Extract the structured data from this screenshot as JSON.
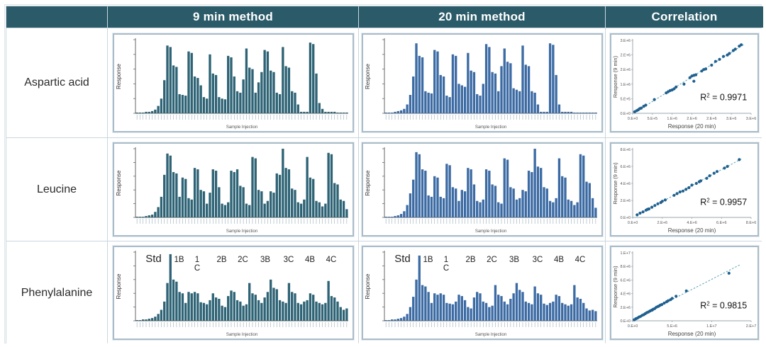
{
  "table": {
    "corner_label": "",
    "column_headers": [
      "9 min method",
      "20 min method",
      "Correlation"
    ],
    "row_labels": [
      "Aspartic acid",
      "Leucine",
      "Phenylalanine"
    ]
  },
  "colors": {
    "header_bg": "#2b5b69",
    "header_text": "#ffffff",
    "bar_9min": "#2e6375",
    "bar_20min": "#3c6ba4",
    "scatter_point": "#1f608f",
    "trendline": "#57a0b4",
    "axis": "#666666",
    "tick_text": "#555555",
    "panel_border": "#a9bcc9",
    "cell_border": "#c9d6dd"
  },
  "chart_data": [
    {
      "type": "bar",
      "row": "Aspartic acid",
      "method": "9 min method",
      "ylabel": "Response",
      "xlabel": "Sample Injection",
      "color_key": "bar_9min",
      "values": [
        1,
        1,
        1,
        2,
        2,
        3,
        5,
        10,
        20,
        45,
        92,
        90,
        65,
        63,
        26,
        25,
        24,
        84,
        82,
        50,
        48,
        38,
        22,
        20,
        80,
        54,
        52,
        22,
        20,
        19,
        78,
        76,
        50,
        30,
        28,
        46,
        88,
        62,
        60,
        28,
        42,
        56,
        86,
        84,
        58,
        56,
        28,
        26,
        90,
        64,
        62,
        30,
        28,
        12,
        2,
        2,
        2,
        96,
        94,
        54,
        14,
        6,
        2,
        2,
        2,
        2,
        1,
        1,
        1,
        1
      ]
    },
    {
      "type": "bar",
      "row": "Aspartic acid",
      "method": "20 min method",
      "ylabel": "Response",
      "xlabel": "Sample Injection",
      "color_key": "bar_20min",
      "values": [
        1,
        1,
        1,
        2,
        3,
        4,
        6,
        12,
        25,
        50,
        95,
        78,
        76,
        30,
        28,
        27,
        86,
        84,
        52,
        50,
        24,
        22,
        80,
        78,
        40,
        38,
        36,
        82,
        58,
        56,
        26,
        24,
        40,
        94,
        90,
        56,
        54,
        30,
        64,
        88,
        70,
        68,
        34,
        32,
        30,
        92,
        66,
        64,
        30,
        28,
        12,
        2,
        2,
        2,
        95,
        93,
        52,
        12,
        2,
        2,
        2,
        2,
        1,
        1,
        1,
        1,
        1,
        1,
        1,
        1
      ]
    },
    {
      "type": "scatter",
      "row": "Aspartic acid",
      "xlabel": "Response (20 min)",
      "ylabel": "Response (9 min)",
      "r2_prefix": "R",
      "r2_sup": "2",
      "r2_eq": " = 0.9971",
      "r2": 0.9971,
      "xlim": [
        0,
        3.0
      ],
      "ylim": [
        0,
        2.5
      ],
      "x_ticks": {
        "values": [
          0,
          0.5,
          1,
          1.5,
          2,
          2.5,
          3
        ],
        "labels": [
          "0.E+0",
          "5.E+5",
          "1.E+6",
          "2.E+6",
          "2.E+6",
          "3.E+6",
          "3.E+6"
        ]
      },
      "y_ticks": {
        "values": [
          0,
          0.5,
          1,
          1.5,
          2,
          2.5
        ],
        "labels": [
          "0.E+0",
          "5.E+5",
          "1.E+6",
          "2.E+6",
          "2.E+6",
          "3.E+6"
        ]
      },
      "points": [
        [
          0.05,
          0.05
        ],
        [
          0.1,
          0.09
        ],
        [
          0.14,
          0.12
        ],
        [
          0.18,
          0.16
        ],
        [
          0.22,
          0.18
        ],
        [
          0.28,
          0.24
        ],
        [
          0.33,
          0.28
        ],
        [
          0.55,
          0.47
        ],
        [
          0.85,
          0.7
        ],
        [
          0.9,
          0.74
        ],
        [
          0.95,
          0.78
        ],
        [
          1.0,
          0.8
        ],
        [
          1.05,
          0.84
        ],
        [
          1.1,
          0.9
        ],
        [
          1.3,
          1.0
        ],
        [
          1.45,
          1.22
        ],
        [
          1.5,
          1.28
        ],
        [
          1.55,
          1.1
        ],
        [
          1.55,
          1.3
        ],
        [
          1.6,
          1.32
        ],
        [
          1.75,
          1.45
        ],
        [
          1.8,
          1.5
        ],
        [
          1.85,
          1.52
        ],
        [
          2.0,
          1.65
        ],
        [
          2.1,
          1.78
        ],
        [
          2.2,
          1.85
        ],
        [
          2.3,
          1.95
        ],
        [
          2.4,
          2.0
        ],
        [
          2.45,
          2.05
        ],
        [
          2.55,
          2.15
        ],
        [
          2.6,
          2.2
        ],
        [
          2.7,
          2.3
        ],
        [
          2.75,
          2.35
        ]
      ]
    },
    {
      "type": "bar",
      "row": "Leucine",
      "method": "9 min method",
      "ylabel": "Response",
      "xlabel": "Sample Injection",
      "color_key": "bar_9min",
      "values": [
        1,
        1,
        1,
        2,
        3,
        4,
        8,
        15,
        30,
        62,
        93,
        90,
        66,
        64,
        30,
        58,
        56,
        28,
        26,
        72,
        70,
        40,
        38,
        20,
        36,
        70,
        68,
        44,
        20,
        18,
        22,
        68,
        66,
        70,
        46,
        44,
        20,
        18,
        88,
        86,
        40,
        38,
        20,
        24,
        38,
        36,
        64,
        62,
        100,
        72,
        70,
        42,
        40,
        22,
        20,
        26,
        88,
        58,
        56,
        24,
        22,
        16,
        20,
        94,
        92,
        50,
        48,
        26,
        24,
        12
      ]
    },
    {
      "type": "bar",
      "row": "Leucine",
      "method": "20 min method",
      "ylabel": "Response",
      "xlabel": "Sample Injection",
      "color_key": "bar_20min",
      "values": [
        1,
        1,
        1,
        2,
        3,
        5,
        9,
        18,
        35,
        55,
        95,
        92,
        70,
        68,
        32,
        30,
        60,
        58,
        30,
        28,
        78,
        76,
        44,
        42,
        24,
        40,
        38,
        72,
        70,
        48,
        24,
        22,
        26,
        70,
        68,
        48,
        46,
        22,
        20,
        86,
        84,
        44,
        42,
        26,
        28,
        40,
        38,
        68,
        66,
        100,
        74,
        72,
        44,
        42,
        24,
        22,
        28,
        86,
        60,
        58,
        26,
        24,
        18,
        22,
        92,
        90,
        52,
        50,
        28,
        14
      ]
    },
    {
      "type": "scatter",
      "row": "Leucine",
      "xlabel": "Response (20 min)",
      "ylabel": "Response (9 min)",
      "r2_prefix": "R",
      "r2_sup": "2",
      "r2_eq": " = 0.9957",
      "r2": 0.9957,
      "xlim": [
        0,
        8
      ],
      "ylim": [
        0,
        8
      ],
      "x_ticks": {
        "values": [
          0,
          2,
          4,
          6,
          8
        ],
        "labels": [
          "0.E+0",
          "2.E+6",
          "4.E+6",
          "6.E+6",
          "8.E+6"
        ]
      },
      "y_ticks": {
        "values": [
          0,
          2,
          4,
          6,
          8
        ],
        "labels": [
          "0.E+0",
          "2.E+6",
          "4.E+6",
          "6.E+6",
          "8.E+6"
        ]
      },
      "points": [
        [
          0.3,
          0.3
        ],
        [
          0.5,
          0.5
        ],
        [
          0.7,
          0.65
        ],
        [
          0.9,
          0.85
        ],
        [
          1.0,
          0.95
        ],
        [
          1.1,
          1.0
        ],
        [
          1.3,
          1.2
        ],
        [
          1.5,
          1.4
        ],
        [
          1.7,
          1.6
        ],
        [
          1.9,
          1.75
        ],
        [
          2.0,
          1.9
        ],
        [
          2.2,
          2.05
        ],
        [
          2.8,
          2.6
        ],
        [
          3.0,
          2.8
        ],
        [
          3.2,
          3.0
        ],
        [
          3.4,
          3.1
        ],
        [
          3.6,
          3.3
        ],
        [
          3.8,
          3.5
        ],
        [
          4.0,
          3.8
        ],
        [
          4.3,
          4.0
        ],
        [
          4.5,
          4.2
        ],
        [
          4.6,
          4.3
        ],
        [
          5.0,
          4.6
        ],
        [
          5.2,
          4.9
        ],
        [
          5.5,
          5.2
        ],
        [
          5.7,
          5.4
        ],
        [
          6.2,
          5.8
        ],
        [
          6.4,
          6.0
        ],
        [
          7.2,
          6.8
        ]
      ]
    },
    {
      "type": "bar",
      "row": "Phenylalanine",
      "method": "9 min method",
      "ylabel": "Response",
      "xlabel": "Sample Injection",
      "color_key": "bar_9min",
      "annotations": [
        {
          "label": "Std",
          "fx": 0.085,
          "size": 15
        },
        {
          "label": "1B",
          "fx": 0.205,
          "size": 11.5
        },
        {
          "label": "1",
          "label2": "C",
          "fx": 0.29,
          "size": 11.5
        },
        {
          "label": "2B",
          "fx": 0.405,
          "size": 11.5
        },
        {
          "label": "2C",
          "fx": 0.505,
          "size": 11.5
        },
        {
          "label": "3B",
          "fx": 0.61,
          "size": 11.5
        },
        {
          "label": "3C",
          "fx": 0.72,
          "size": 11.5
        },
        {
          "label": "4B",
          "fx": 0.82,
          "size": 11.5
        },
        {
          "label": "4C",
          "fx": 0.92,
          "size": 11.5
        }
      ],
      "values": [
        1,
        1,
        2,
        2,
        3,
        4,
        6,
        10,
        16,
        28,
        55,
        97,
        60,
        57,
        42,
        40,
        26,
        42,
        40,
        42,
        40,
        27,
        26,
        24,
        30,
        40,
        34,
        32,
        22,
        20,
        36,
        44,
        42,
        30,
        28,
        22,
        24,
        55,
        40,
        38,
        30,
        26,
        34,
        42,
        60,
        48,
        46,
        30,
        28,
        26,
        55,
        42,
        40,
        26,
        24,
        28,
        30,
        40,
        38,
        28,
        26,
        24,
        26,
        58,
        36,
        34,
        28,
        20,
        16,
        18
      ]
    },
    {
      "type": "bar",
      "row": "Phenylalanine",
      "method": "20 min method",
      "ylabel": "Response",
      "xlabel": "Sample Injection",
      "color_key": "bar_20min",
      "annotations": [
        {
          "label": "Std",
          "fx": 0.085,
          "size": 15
        },
        {
          "label": "1B",
          "fx": 0.205,
          "size": 11.5
        },
        {
          "label": "1",
          "label2": "C",
          "fx": 0.29,
          "size": 11.5
        },
        {
          "label": "2B",
          "fx": 0.405,
          "size": 11.5
        },
        {
          "label": "2C",
          "fx": 0.505,
          "size": 11.5
        },
        {
          "label": "3B",
          "fx": 0.61,
          "size": 11.5
        },
        {
          "label": "3C",
          "fx": 0.72,
          "size": 11.5
        },
        {
          "label": "4B",
          "fx": 0.82,
          "size": 11.5
        },
        {
          "label": "4C",
          "fx": 0.92,
          "size": 11.5
        }
      ],
      "values": [
        1,
        1,
        2,
        2,
        3,
        4,
        6,
        10,
        20,
        35,
        60,
        95,
        52,
        50,
        42,
        26,
        40,
        38,
        40,
        38,
        26,
        25,
        24,
        28,
        38,
        36,
        30,
        20,
        18,
        34,
        42,
        40,
        28,
        26,
        20,
        22,
        52,
        38,
        36,
        28,
        24,
        32,
        40,
        55,
        45,
        42,
        28,
        26,
        24,
        50,
        40,
        38,
        25,
        23,
        26,
        28,
        38,
        36,
        26,
        24,
        22,
        24,
        52,
        34,
        32,
        26,
        18,
        15,
        16,
        14
      ]
    },
    {
      "type": "scatter",
      "row": "Phenylalanine",
      "xlabel": "Response (20 min)",
      "ylabel": "Response (9 min)",
      "r2_prefix": "R",
      "r2_sup": "2",
      "r2_eq": " = 0.9815",
      "r2": 0.9815,
      "xlim": [
        0,
        15
      ],
      "ylim": [
        0,
        10
      ],
      "x_ticks": {
        "values": [
          0,
          5,
          10,
          15
        ],
        "labels": [
          "0.E+0",
          "5.E+6",
          "1.E+7",
          "2.E+7"
        ]
      },
      "y_ticks": {
        "values": [
          0,
          2,
          4,
          6,
          8,
          10
        ],
        "labels": [
          "0.E+0",
          "2.E+6",
          "4.E+6",
          "6.E+6",
          "8.E+6",
          "1.E+7"
        ]
      },
      "points": [
        [
          0.2,
          0.15
        ],
        [
          0.4,
          0.3
        ],
        [
          0.6,
          0.4
        ],
        [
          0.8,
          0.55
        ],
        [
          1.0,
          0.65
        ],
        [
          1.2,
          0.8
        ],
        [
          1.4,
          0.9
        ],
        [
          1.6,
          1.05
        ],
        [
          1.8,
          1.2
        ],
        [
          2.0,
          1.3
        ],
        [
          2.2,
          1.45
        ],
        [
          2.4,
          1.55
        ],
        [
          2.5,
          1.6
        ],
        [
          2.6,
          1.7
        ],
        [
          2.8,
          1.8
        ],
        [
          3.0,
          2.0
        ],
        [
          3.2,
          2.1
        ],
        [
          3.3,
          2.15
        ],
        [
          3.5,
          2.3
        ],
        [
          3.7,
          2.4
        ],
        [
          4.0,
          2.6
        ],
        [
          4.3,
          2.8
        ],
        [
          4.5,
          2.95
        ],
        [
          4.8,
          3.1
        ],
        [
          5.0,
          3.3
        ],
        [
          5.5,
          3.6
        ],
        [
          6.8,
          4.4
        ],
        [
          12.2,
          7.0
        ]
      ],
      "trend_extend_x": 13.6
    }
  ]
}
